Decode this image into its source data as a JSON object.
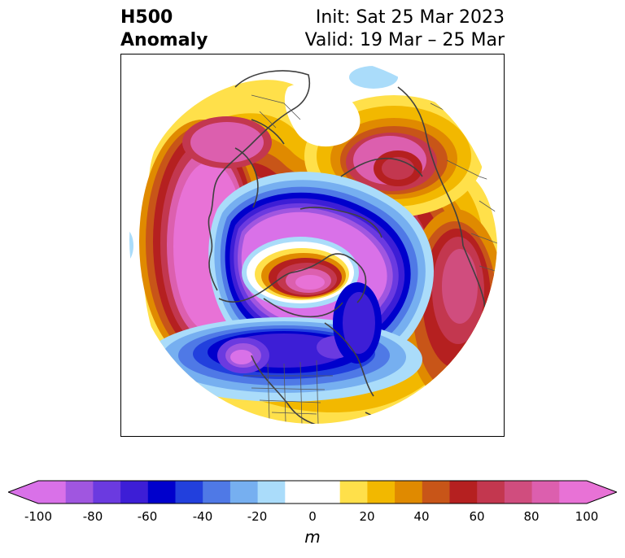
{
  "title": {
    "left_line1": "H500",
    "left_line2": "Anomaly",
    "right_line1": "Init: Sat 25 Mar 2023",
    "right_line2": "Valid: 19 Mar – 25 Mar"
  },
  "colorbar": {
    "unit": "m",
    "tick_labels": [
      "-100",
      "-80",
      "-60",
      "-40",
      "-20",
      "0",
      "20",
      "40",
      "60",
      "80",
      "100"
    ],
    "colors": [
      "#d971e8",
      "#a056e0",
      "#6b3ae0",
      "#3d1ed6",
      "#0000cc",
      "#2240dd",
      "#4f79e6",
      "#76aff0",
      "#aadcfa",
      "#ffffff",
      "#ffffff",
      "#ffe04a",
      "#f2b800",
      "#e08a00",
      "#c85518",
      "#b52020",
      "#c3374f",
      "#d04d7e",
      "#dc5fae",
      "#e872d6"
    ],
    "extend_low": "#d971e8",
    "extend_high": "#e872d6"
  },
  "map": {
    "projection": "north polar stereographic",
    "variable": "500 hPa geopotential height anomaly"
  }
}
